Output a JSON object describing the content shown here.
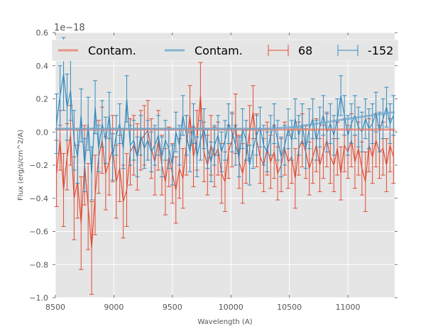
{
  "chart_data": {
    "type": "line",
    "title": "",
    "xlabel": "Wavelength (A)",
    "ylabel": "Flux (erg/s/cm^2/A)",
    "y_offset_label": "1e−18",
    "xlim": [
      8500,
      11400
    ],
    "ylim": [
      -1.0,
      0.6
    ],
    "grid": true,
    "legend_placement": "top",
    "x_ticks": [
      8500,
      9000,
      9500,
      10000,
      10500,
      11000
    ],
    "x_tick_labels": [
      "8500",
      "9000",
      "9500",
      "10000",
      "10500",
      "11000"
    ],
    "y_ticks": [
      -1.0,
      -0.8,
      -0.6,
      -0.4,
      -0.2,
      0.0,
      0.2,
      0.4,
      0.6
    ],
    "y_tick_labels": [
      "−1.0",
      "−0.8",
      "−0.6",
      "−0.4",
      "−0.2",
      "0.0",
      "0.2",
      "0.4",
      "0.6"
    ],
    "legend": [
      {
        "label": "Contam.",
        "type": "line",
        "color": "#E8806E"
      },
      {
        "label": "Contam.",
        "type": "line",
        "color": "#6DA6CD"
      },
      {
        "label": "68",
        "type": "errorbar",
        "color": "#E24A33"
      },
      {
        "label": "-152",
        "type": "errorbar",
        "color": "#348ABD"
      }
    ],
    "contam_lines": [
      {
        "name": "Contam. (68)",
        "color": "#E8806E",
        "x": [
          8500,
          11400
        ],
        "y": [
          0.015,
          0.015
        ]
      },
      {
        "name": "Contam. (-152)",
        "color": "#6DA6CD",
        "x": [
          8500,
          10300,
          10550,
          11000,
          11400
        ],
        "y": [
          0.02,
          0.02,
          0.03,
          0.08,
          0.12
        ]
      }
    ],
    "series": [
      {
        "name": "68",
        "color": "#E24A33",
        "x_start": 8510,
        "x_step": 30,
        "values": [
          -0.25,
          -0.05,
          -0.35,
          -0.15,
          -0.02,
          -0.4,
          -0.3,
          -0.55,
          -0.2,
          -0.45,
          -0.7,
          -0.38,
          -0.15,
          -0.05,
          -0.25,
          -0.18,
          -0.1,
          -0.3,
          -0.22,
          -0.42,
          -0.35,
          -0.12,
          -0.08,
          -0.15,
          -0.05,
          -0.02,
          0.01,
          -0.1,
          -0.18,
          -0.05,
          -0.2,
          -0.3,
          -0.15,
          -0.25,
          -0.35,
          -0.22,
          -0.28,
          -0.08,
          0.1,
          -0.15,
          -0.05,
          0.22,
          -0.12,
          -0.2,
          -0.08,
          -0.15,
          -0.1,
          -0.25,
          -0.3,
          -0.12,
          -0.05,
          0.05,
          -0.18,
          -0.25,
          -0.15,
          0.0,
          0.12,
          -0.05,
          -0.15,
          -0.2,
          -0.1,
          -0.18,
          -0.12,
          -0.25,
          -0.2,
          -0.1,
          -0.18,
          -0.15,
          -0.28,
          -0.1,
          -0.05,
          -0.12,
          -0.22,
          -0.15,
          -0.08,
          -0.2,
          -0.12,
          -0.05,
          -0.15,
          -0.2,
          -0.1,
          -0.25,
          -0.08,
          -0.12,
          -0.05,
          -0.18,
          -0.1,
          -0.22,
          -0.3,
          -0.08,
          -0.15,
          -0.05,
          -0.12,
          -0.1,
          -0.2,
          -0.08,
          -0.15
        ],
        "errors": [
          0.2,
          0.18,
          0.22,
          0.2,
          0.18,
          0.25,
          0.22,
          0.28,
          0.24,
          0.26,
          0.28,
          0.24,
          0.22,
          0.2,
          0.22,
          0.2,
          0.2,
          0.22,
          0.2,
          0.22,
          0.22,
          0.2,
          0.18,
          0.2,
          0.18,
          0.18,
          0.18,
          0.18,
          0.2,
          0.18,
          0.18,
          0.2,
          0.18,
          0.18,
          0.2,
          0.18,
          0.18,
          0.18,
          0.18,
          0.18,
          0.18,
          0.2,
          0.18,
          0.18,
          0.18,
          0.18,
          0.16,
          0.18,
          0.18,
          0.16,
          0.16,
          0.18,
          0.16,
          0.18,
          0.16,
          0.16,
          0.16,
          0.16,
          0.16,
          0.16,
          0.16,
          0.16,
          0.16,
          0.16,
          0.16,
          0.16,
          0.16,
          0.16,
          0.18,
          0.16,
          0.16,
          0.16,
          0.16,
          0.16,
          0.16,
          0.16,
          0.16,
          0.16,
          0.16,
          0.16,
          0.16,
          0.16,
          0.16,
          0.16,
          0.16,
          0.16,
          0.16,
          0.16,
          0.18,
          0.16,
          0.16,
          0.16,
          0.16,
          0.16,
          0.16,
          0.16,
          0.16
        ]
      },
      {
        "name": "-152",
        "color": "#348ABD",
        "x_start": 8510,
        "x_step": 30,
        "values": [
          0.05,
          0.22,
          0.35,
          0.15,
          0.25,
          -0.05,
          -0.15,
          0.1,
          -0.2,
          0.05,
          -0.25,
          0.15,
          -0.1,
          0.05,
          -0.05,
          0.1,
          -0.15,
          -0.02,
          0.05,
          -0.1,
          0.2,
          -0.08,
          -0.05,
          -0.15,
          -0.02,
          -0.1,
          -0.05,
          -0.12,
          -0.08,
          -0.02,
          -0.15,
          -0.05,
          -0.1,
          -0.2,
          0.0,
          -0.08,
          0.1,
          -0.02,
          -0.12,
          0.05,
          -0.15,
          -0.05,
          0.02,
          -0.1,
          -0.18,
          -0.08,
          -0.02,
          -0.12,
          -0.05,
          0.05,
          0.0,
          -0.08,
          -0.15,
          0.02,
          -0.05,
          -0.2,
          -0.1,
          -0.02,
          0.03,
          -0.08,
          -0.12,
          -0.02,
          0.05,
          -0.05,
          -0.15,
          -0.08,
          0.02,
          -0.05,
          0.08,
          -0.02,
          0.05,
          -0.1,
          0.02,
          0.08,
          -0.05,
          0.03,
          0.1,
          0.0,
          0.05,
          -0.02,
          0.08,
          0.22,
          0.1,
          -0.02,
          0.05,
          0.1,
          0.03,
          0.0,
          0.08,
          0.02,
          0.05,
          0.12,
          0.0,
          0.08,
          0.15,
          0.05,
          0.1
        ],
        "errors": [
          0.18,
          0.18,
          0.22,
          0.2,
          0.18,
          0.18,
          0.16,
          0.16,
          0.16,
          0.16,
          0.16,
          0.16,
          0.14,
          0.14,
          0.14,
          0.14,
          0.14,
          0.12,
          0.12,
          0.12,
          0.14,
          0.12,
          0.12,
          0.12,
          0.12,
          0.12,
          0.12,
          0.12,
          0.12,
          0.12,
          0.12,
          0.12,
          0.12,
          0.12,
          0.12,
          0.12,
          0.12,
          0.12,
          0.12,
          0.12,
          0.12,
          0.12,
          0.12,
          0.12,
          0.12,
          0.12,
          0.12,
          0.12,
          0.12,
          0.12,
          0.12,
          0.12,
          0.12,
          0.12,
          0.12,
          0.12,
          0.12,
          0.12,
          0.12,
          0.12,
          0.12,
          0.12,
          0.12,
          0.12,
          0.12,
          0.12,
          0.12,
          0.12,
          0.12,
          0.12,
          0.12,
          0.12,
          0.12,
          0.12,
          0.12,
          0.12,
          0.12,
          0.12,
          0.12,
          0.12,
          0.12,
          0.12,
          0.12,
          0.12,
          0.12,
          0.12,
          0.12,
          0.12,
          0.12,
          0.12,
          0.12,
          0.12,
          0.12,
          0.12,
          0.12,
          0.12,
          0.12
        ]
      }
    ]
  }
}
